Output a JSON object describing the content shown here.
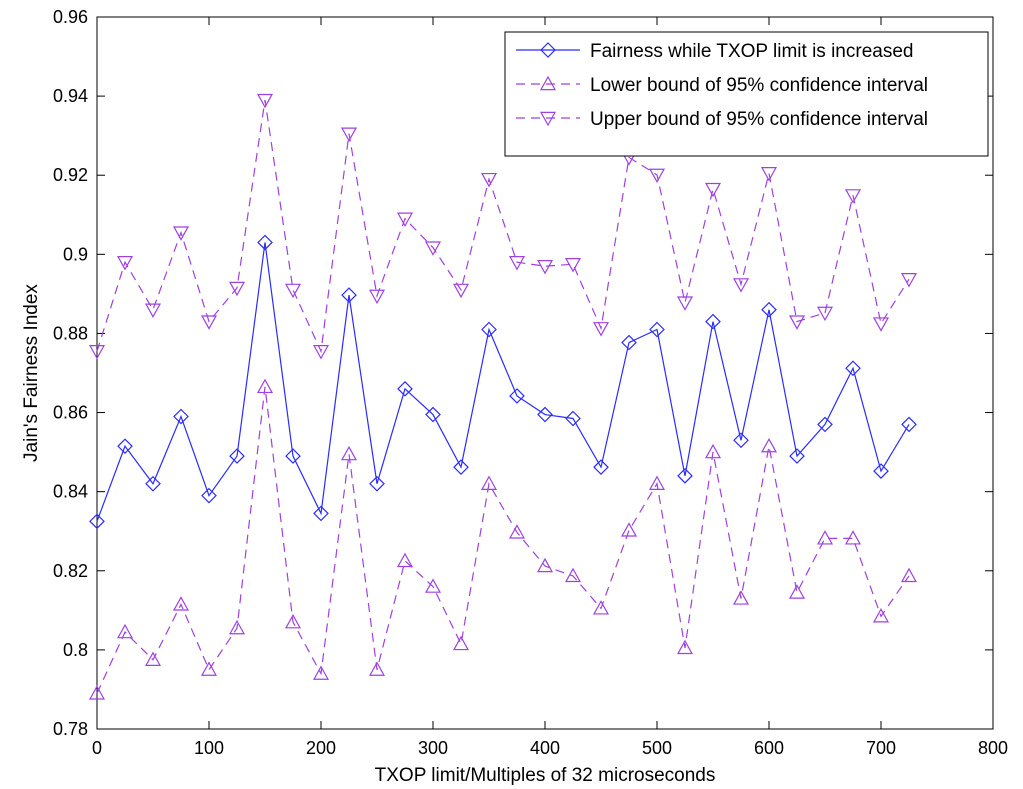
{
  "chart_data": {
    "type": "line",
    "xlabel": "TXOP limit/Multiples of 32 microseconds",
    "ylabel": "Jain's Fairness Index",
    "xlim": [
      0,
      800
    ],
    "ylim": [
      0.78,
      0.96
    ],
    "xticks": [
      0,
      100,
      200,
      300,
      400,
      500,
      600,
      700,
      800
    ],
    "xtick_labels": [
      "0",
      "100",
      "200",
      "300",
      "400",
      "500",
      "600",
      "700",
      "800"
    ],
    "yticks": [
      0.78,
      0.8,
      0.82,
      0.84,
      0.86,
      0.88,
      0.9,
      0.92,
      0.94,
      0.96
    ],
    "ytick_labels": [
      "0.78",
      "0.8",
      "0.82",
      "0.84",
      "0.86",
      "0.88",
      "0.9",
      "0.92",
      "0.94",
      "0.96"
    ],
    "grid": false,
    "legend_position": "top-right",
    "x": [
      0,
      25,
      50,
      75,
      100,
      125,
      150,
      175,
      200,
      225,
      250,
      275,
      300,
      325,
      350,
      375,
      400,
      425,
      450,
      475,
      500,
      525,
      550,
      575,
      600,
      625,
      650,
      675,
      700,
      725
    ],
    "series": [
      {
        "name": "Fairness while TXOP limit is increased",
        "color": "#2b2bff",
        "line_style": "solid",
        "marker": "diamond",
        "values": [
          0.8325,
          0.8515,
          0.842,
          0.859,
          0.839,
          0.849,
          0.903,
          0.849,
          0.8345,
          0.8897,
          0.842,
          0.866,
          0.8595,
          0.8462,
          0.881,
          0.8642,
          0.8595,
          0.8585,
          0.8462,
          0.8777,
          0.881,
          0.844,
          0.883,
          0.853,
          0.886,
          0.849,
          0.857,
          0.8712,
          0.8452,
          0.857
        ]
      },
      {
        "name": "Lower bound of 95% confidence interval",
        "color": "#a040e0",
        "line_style": "dashed",
        "marker": "triangle-up",
        "values": [
          0.789,
          0.8045,
          0.7975,
          0.8115,
          0.795,
          0.8055,
          0.8665,
          0.807,
          0.794,
          0.8495,
          0.795,
          0.8225,
          0.816,
          0.8015,
          0.842,
          0.8297,
          0.8212,
          0.8187,
          0.8105,
          0.8302,
          0.842,
          0.8005,
          0.85,
          0.813,
          0.8515,
          0.8145,
          0.8282,
          0.8282,
          0.8085,
          0.8187
        ]
      },
      {
        "name": "Upper bound of 95% confidence interval",
        "color": "#a040e0",
        "line_style": "dashed",
        "marker": "triangle-down",
        "values": [
          0.8755,
          0.898,
          0.886,
          0.9055,
          0.883,
          0.8915,
          0.939,
          0.891,
          0.8755,
          0.9305,
          0.8895,
          0.909,
          0.9017,
          0.891,
          0.919,
          0.898,
          0.897,
          0.8975,
          0.8813,
          0.9245,
          0.9201,
          0.8878,
          0.9165,
          0.8924,
          0.9205,
          0.883,
          0.8852,
          0.9149,
          0.8825,
          0.8937
        ]
      }
    ]
  }
}
